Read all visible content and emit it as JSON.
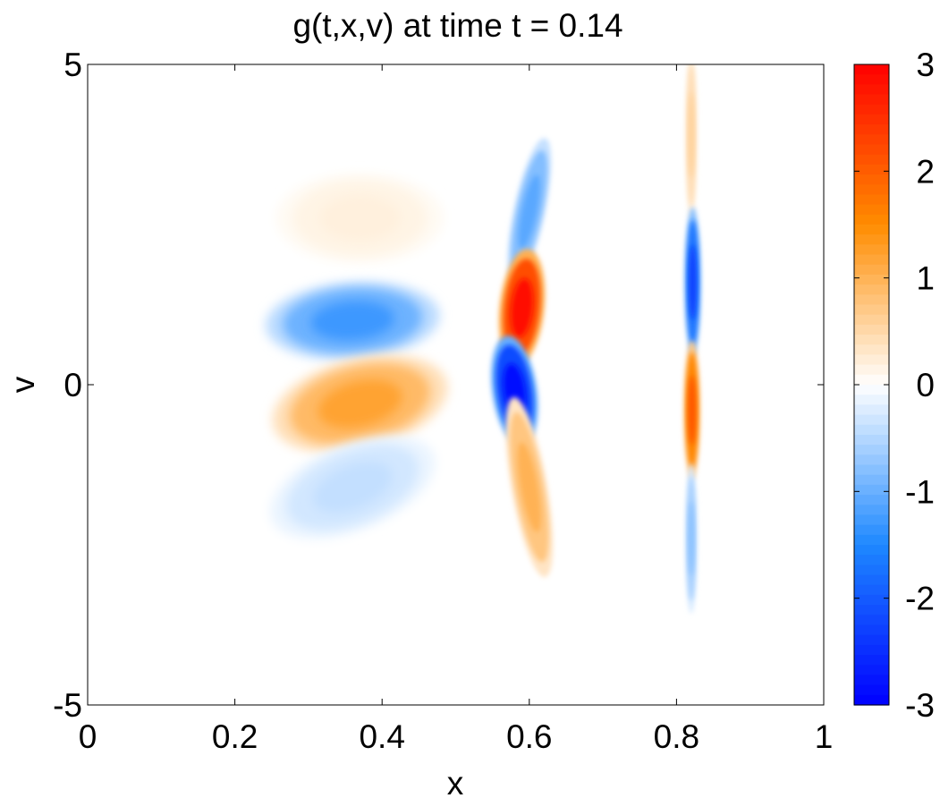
{
  "chart_data": {
    "type": "heatmap",
    "title": "g(t,x,v) at time t = 0.14",
    "xlabel": "x",
    "ylabel": "v",
    "xlim": [
      0,
      1
    ],
    "ylim": [
      -5,
      5
    ],
    "x_ticks": [
      {
        "value": 0,
        "label": "0"
      },
      {
        "value": 0.2,
        "label": "0.2"
      },
      {
        "value": 0.4,
        "label": "0.4"
      },
      {
        "value": 0.6,
        "label": "0.6"
      },
      {
        "value": 0.8,
        "label": "0.8"
      },
      {
        "value": 1,
        "label": "1"
      }
    ],
    "y_ticks": [
      {
        "value": -5,
        "label": "-5"
      },
      {
        "value": 0,
        "label": "0"
      },
      {
        "value": 5,
        "label": "5"
      }
    ],
    "colorbar": {
      "range": [
        -3,
        3
      ],
      "ticks": [
        {
          "value": -3,
          "label": "-3"
        },
        {
          "value": -2,
          "label": "-2"
        },
        {
          "value": -1,
          "label": "-1"
        },
        {
          "value": 0,
          "label": "0"
        },
        {
          "value": 1,
          "label": "1"
        },
        {
          "value": 2,
          "label": "2"
        },
        {
          "value": 3,
          "label": "3"
        }
      ],
      "colors": {
        "min": "#0000ff",
        "mid_negative": "#1e88ff",
        "zero": "#ffffff",
        "mid_positive": "#ff8c00",
        "max": "#ff0000"
      },
      "levels": 64
    },
    "structures": [
      {
        "x": 0.37,
        "v": 2.6,
        "value": 0.2
      },
      {
        "x": 0.36,
        "v": 1.0,
        "value": -1.3
      },
      {
        "x": 0.37,
        "v": -0.3,
        "value": 1.2
      },
      {
        "x": 0.36,
        "v": -1.6,
        "value": -0.4
      },
      {
        "x": 0.6,
        "v": 2.7,
        "value": -1.1
      },
      {
        "x": 0.59,
        "v": 1.2,
        "value": 2.9
      },
      {
        "x": 0.58,
        "v": -0.1,
        "value": -2.9
      },
      {
        "x": 0.6,
        "v": -1.6,
        "value": 1.0
      },
      {
        "x": 0.82,
        "v": 3.9,
        "value": 0.6
      },
      {
        "x": 0.822,
        "v": 1.6,
        "value": -2.3
      },
      {
        "x": 0.821,
        "v": -0.4,
        "value": 2.1
      },
      {
        "x": 0.82,
        "v": -2.4,
        "value": -0.8
      }
    ]
  }
}
